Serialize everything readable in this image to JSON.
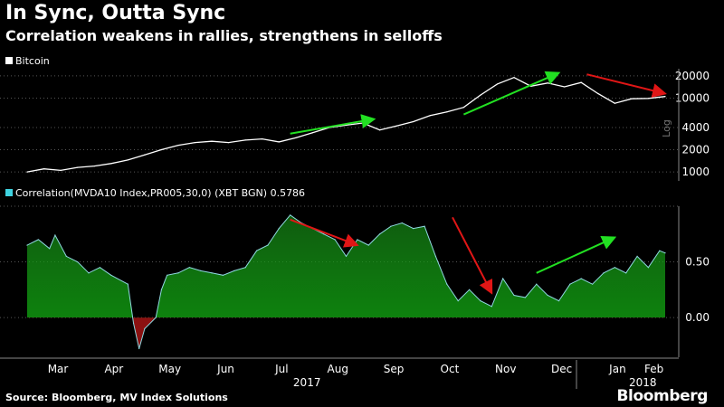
{
  "header": {
    "title": "In Sync, Outta Sync",
    "subtitle": "Correlation weakens in rallies, strengthens in selloffs"
  },
  "footer": {
    "source": "Source: Bloomberg, MV Index Solutions",
    "brand": "Bloomberg"
  },
  "colors": {
    "background": "#000000",
    "line": "#ffffff",
    "positive_fill": "#0c8a0c",
    "negative_fill": "#8b1111",
    "legend_cyan": "#3fd3e0",
    "arrow_green": "#22e022",
    "arrow_red": "#e01616"
  },
  "chart_data": [
    {
      "type": "line",
      "title": "Bitcoin",
      "legend": "Bitcoin",
      "y_scale": "log",
      "ylim": [
        800,
        25000
      ],
      "yticks": [
        "20000",
        "10000",
        "4000",
        "2000",
        "1000"
      ],
      "ytick_values": [
        20000,
        10000,
        4000,
        2000,
        1000
      ],
      "vertical_label": "Log",
      "x_range": [
        0,
        11.4
      ],
      "series": [
        {
          "name": "Bitcoin",
          "x": [
            0,
            0.3,
            0.6,
            0.9,
            1.2,
            1.5,
            1.8,
            2.1,
            2.4,
            2.7,
            3.0,
            3.3,
            3.6,
            3.9,
            4.2,
            4.5,
            4.8,
            5.1,
            5.4,
            5.7,
            6.0,
            6.3,
            6.6,
            6.9,
            7.2,
            7.5,
            7.8,
            8.1,
            8.4,
            8.7,
            9.0,
            9.3,
            9.6,
            9.9,
            10.2,
            10.5,
            10.8,
            11.1,
            11.4
          ],
          "values": [
            1000,
            1100,
            1050,
            1150,
            1200,
            1300,
            1450,
            1700,
            2000,
            2300,
            2500,
            2600,
            2500,
            2700,
            2800,
            2550,
            2900,
            3400,
            4000,
            4300,
            4600,
            3700,
            4200,
            4800,
            5800,
            6500,
            7500,
            11000,
            15500,
            19000,
            14500,
            16000,
            14200,
            16300,
            11500,
            8500,
            9800,
            9900,
            10500
          ]
        }
      ],
      "annotations": [
        {
          "type": "arrow",
          "color": "green",
          "from": [
            4.7,
            3300
          ],
          "to": [
            6.2,
            5200
          ]
        },
        {
          "type": "arrow",
          "color": "green",
          "from": [
            7.8,
            6000
          ],
          "to": [
            9.5,
            22000
          ]
        },
        {
          "type": "arrow",
          "color": "red",
          "from": [
            10.0,
            21000
          ],
          "to": [
            11.4,
            11500
          ]
        }
      ]
    },
    {
      "type": "area",
      "legend": "Correlation(MVDA10 Index,PR005,30,0) (XBT BGN) 0.5786",
      "ylim": [
        -0.3,
        1.0
      ],
      "yticks": [
        "0.50",
        "0.00"
      ],
      "ytick_values": [
        0.5,
        0.0
      ],
      "x_range": [
        0,
        11.4
      ],
      "xticks": [
        "Mar",
        "Apr",
        "May",
        "Jun",
        "Jul",
        "Aug",
        "Sep",
        "Oct",
        "Nov",
        "Dec",
        "Jan",
        "Feb"
      ],
      "xtick_values": [
        0.55,
        1.55,
        2.55,
        3.55,
        4.55,
        5.55,
        6.55,
        7.55,
        8.55,
        9.55,
        10.55,
        11.2
      ],
      "year_labels": [
        "2017",
        "2018"
      ],
      "year_label_positions": [
        5.0,
        11.0
      ],
      "series": [
        {
          "name": "Correlation",
          "x": [
            0,
            0.2,
            0.4,
            0.5,
            0.7,
            0.9,
            1.1,
            1.3,
            1.5,
            1.8,
            1.9,
            2.0,
            2.1,
            2.3,
            2.4,
            2.5,
            2.7,
            2.9,
            3.1,
            3.3,
            3.5,
            3.7,
            3.9,
            4.1,
            4.3,
            4.5,
            4.7,
            4.9,
            5.1,
            5.3,
            5.5,
            5.7,
            5.9,
            6.1,
            6.3,
            6.5,
            6.7,
            6.9,
            7.1,
            7.3,
            7.5,
            7.7,
            7.9,
            8.1,
            8.3,
            8.5,
            8.7,
            8.9,
            9.1,
            9.3,
            9.5,
            9.7,
            9.9,
            10.1,
            10.3,
            10.5,
            10.7,
            10.9,
            11.1,
            11.3,
            11.4
          ],
          "values": [
            0.65,
            0.7,
            0.62,
            0.74,
            0.55,
            0.5,
            0.4,
            0.45,
            0.38,
            0.3,
            -0.05,
            -0.28,
            -0.1,
            0.0,
            0.25,
            0.38,
            0.4,
            0.45,
            0.42,
            0.4,
            0.38,
            0.42,
            0.45,
            0.6,
            0.65,
            0.8,
            0.92,
            0.85,
            0.8,
            0.75,
            0.7,
            0.55,
            0.7,
            0.65,
            0.75,
            0.82,
            0.85,
            0.8,
            0.82,
            0.55,
            0.3,
            0.15,
            0.25,
            0.15,
            0.1,
            0.35,
            0.2,
            0.18,
            0.3,
            0.2,
            0.15,
            0.3,
            0.35,
            0.3,
            0.4,
            0.45,
            0.4,
            0.55,
            0.45,
            0.6,
            0.58
          ]
        }
      ],
      "annotations": [
        {
          "type": "arrow",
          "color": "red",
          "from": [
            4.7,
            0.88
          ],
          "to": [
            5.9,
            0.65
          ]
        },
        {
          "type": "arrow",
          "color": "red",
          "from": [
            7.6,
            0.9
          ],
          "to": [
            8.3,
            0.22
          ]
        },
        {
          "type": "arrow",
          "color": "green",
          "from": [
            9.1,
            0.4
          ],
          "to": [
            10.5,
            0.72
          ]
        }
      ]
    }
  ]
}
